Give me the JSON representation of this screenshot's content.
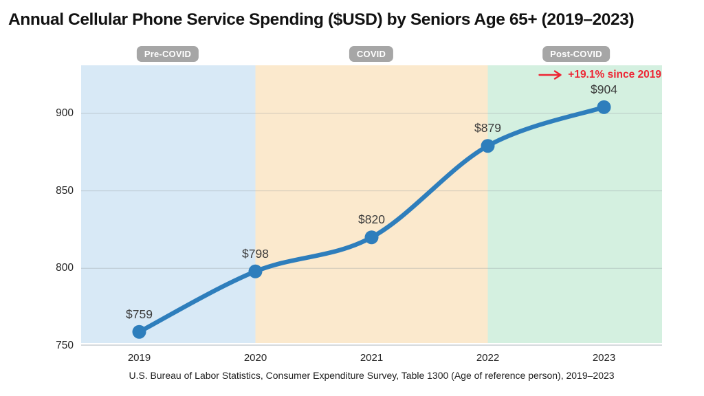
{
  "chart_data": {
    "type": "line",
    "title": "Annual Cellular Phone Service Spending ($USD) by Seniors Age 65+ (2019–2023)",
    "source": "U.S. Bureau of Labor Statistics, Consumer Expenditure Survey, Table 1300 (Age of reference person), 2019–2023",
    "categories": [
      "2019",
      "2020",
      "2021",
      "2022",
      "2023"
    ],
    "values": [
      759,
      798,
      820,
      879,
      904
    ],
    "data_labels": [
      "$759",
      "$798",
      "$820",
      "$879",
      "$904"
    ],
    "ylim": [
      750,
      931
    ],
    "yticks": [
      900,
      850,
      800,
      750
    ],
    "gridlines": [
      900,
      850,
      800
    ],
    "grid": "horizontal",
    "legend": "none",
    "xlabel": "",
    "ylabel": "",
    "line_color": "#2e7ebc",
    "data_label_color": "#3b3b3b",
    "badge_color": "#a6a6a6",
    "annotation": {
      "text": "+19.1% since 2019",
      "color": "#ee2433",
      "icon": "right-arrow"
    },
    "bands": [
      {
        "label": "Pre-COVID",
        "color": "#d8e9f6",
        "from_category": null,
        "to_category": "2020"
      },
      {
        "label": "COVID",
        "color": "#fbe9cd",
        "from_category": "2020",
        "to_category": "2022"
      },
      {
        "label": "Post-COVID",
        "color": "#d4f0e0",
        "from_category": "2022",
        "to_category": null
      }
    ]
  }
}
